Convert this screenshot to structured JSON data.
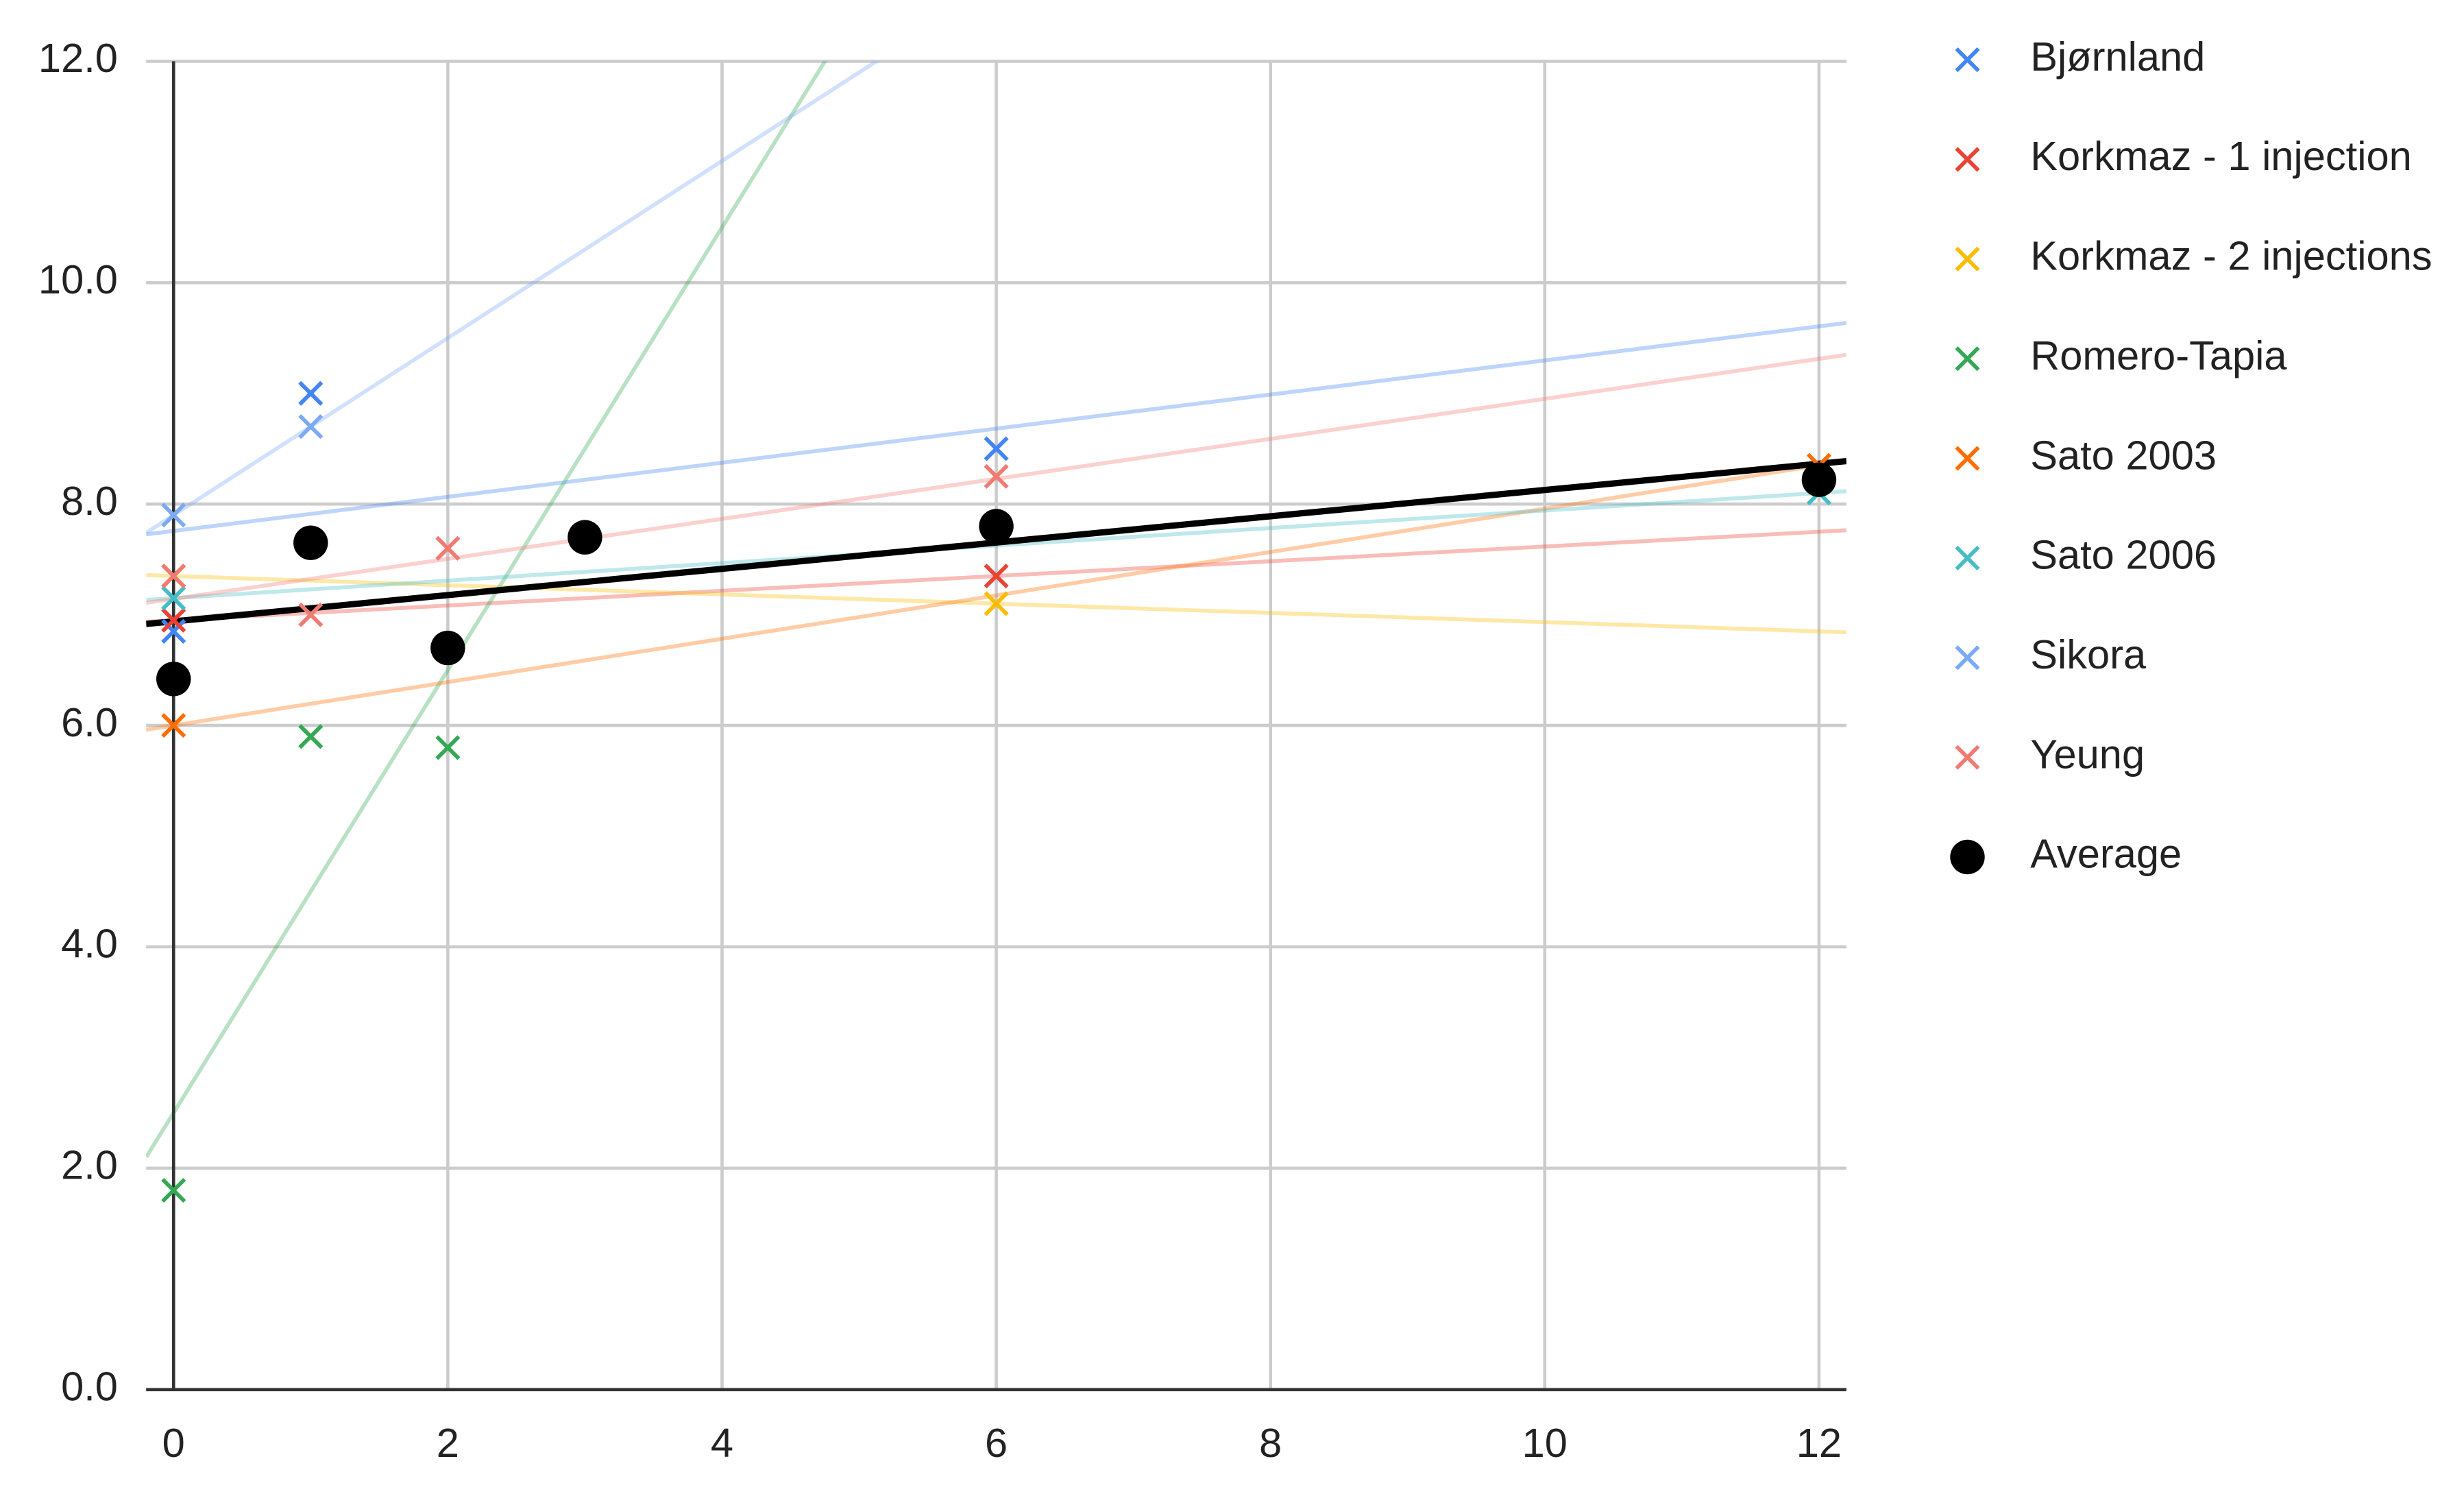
{
  "chart_data": {
    "type": "scatter",
    "trendlines": true,
    "grid": true,
    "legend": "right",
    "xlim": [
      -0.2,
      12.2
    ],
    "ylim": [
      0,
      12
    ],
    "xticks": [
      0,
      2,
      4,
      6,
      8,
      10,
      12
    ],
    "yticks": [
      {
        "value": 0,
        "label": "0.0"
      },
      {
        "value": 2,
        "label": "2.0"
      },
      {
        "value": 4,
        "label": "4.0"
      },
      {
        "value": 6,
        "label": "6.0"
      },
      {
        "value": 8,
        "label": "8.0"
      },
      {
        "value": 10,
        "label": "10.0"
      },
      {
        "value": 12,
        "label": "12.0"
      }
    ],
    "series": [
      {
        "name": "Bjørnland",
        "color": "#4285f4",
        "marker": "x",
        "x": [
          0,
          1,
          6
        ],
        "values": [
          6.85,
          9.0,
          8.5
        ]
      },
      {
        "name": "Korkmaz - 1 injection",
        "color": "#ea4335",
        "marker": "x",
        "x": [
          0,
          6
        ],
        "values": [
          6.95,
          7.35
        ]
      },
      {
        "name": "Korkmaz - 2 injections",
        "color": "#fbbc04",
        "marker": "x",
        "x": [
          0,
          6
        ],
        "values": [
          7.35,
          7.1
        ]
      },
      {
        "name": "Romero-Tapia",
        "color": "#34a853",
        "marker": "x",
        "x": [
          0,
          1,
          2
        ],
        "values": [
          1.8,
          5.9,
          5.8
        ]
      },
      {
        "name": "Sato 2003",
        "color": "#ff6d01",
        "marker": "x",
        "x": [
          0,
          12
        ],
        "values": [
          6.0,
          8.35
        ]
      },
      {
        "name": "Sato 2006",
        "color": "#46bdc6",
        "marker": "x",
        "x": [
          0,
          12
        ],
        "values": [
          7.15,
          8.1
        ]
      },
      {
        "name": "Sikora",
        "color": "#7baaf7",
        "marker": "x",
        "x": [
          0,
          1
        ],
        "values": [
          7.9,
          8.7
        ]
      },
      {
        "name": "Yeung",
        "color": "#f07b72",
        "marker": "x",
        "x": [
          0,
          1,
          2,
          6
        ],
        "values": [
          7.35,
          7.0,
          7.6,
          8.25
        ]
      },
      {
        "name": "Average",
        "color": "#000000",
        "marker": "circle",
        "x": [
          0,
          1,
          2,
          3,
          6,
          12
        ],
        "values": [
          6.42,
          7.65,
          6.7,
          7.7,
          7.8,
          8.22
        ]
      }
    ]
  }
}
